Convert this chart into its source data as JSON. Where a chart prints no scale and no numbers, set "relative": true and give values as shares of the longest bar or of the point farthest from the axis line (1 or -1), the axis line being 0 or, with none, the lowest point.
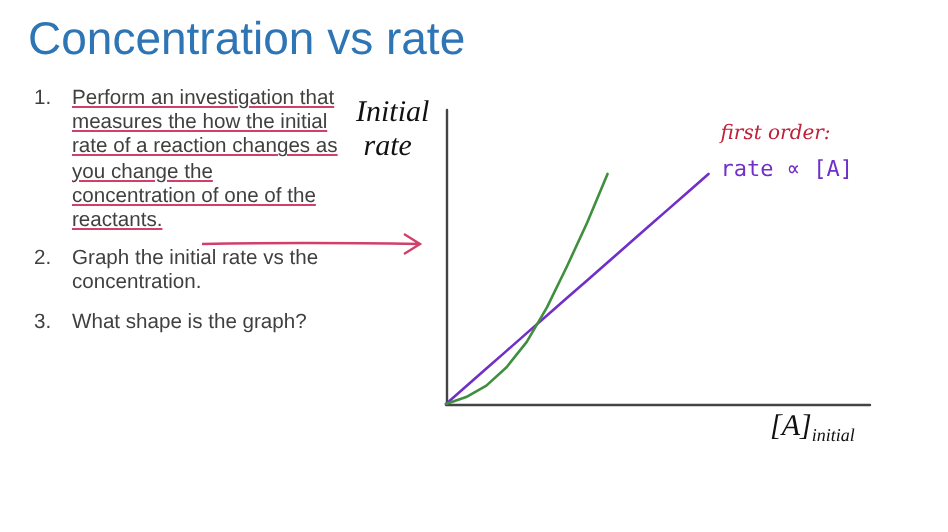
{
  "chart_data": {
    "type": "line",
    "title": "Concentration vs rate",
    "xlabel": "[A]$_{initial}$",
    "ylabel": "Initial rate",
    "relative": true,
    "grid": false,
    "legend": false,
    "marker": "none",
    "line_style": "solid",
    "categories": [
      null,
      null,
      null,
      null,
      null,
      null,
      null,
      null,
      null,
      null,
      null,
      null,
      null,
      null,
      null,
      null,
      null,
      null,
      null,
      null,
      null,
      null
    ],
    "series": [
      {
        "name": "rate ∝ [A]",
        "color": "#7030c8",
        "values": [
          0,
          0.077,
          0.154,
          0.231,
          0.308,
          0.385,
          0.462,
          0.538,
          0.615,
          0.692,
          0.769,
          0.846,
          0.923,
          1,
          null,
          null,
          null,
          null,
          null,
          null,
          null,
          null
        ]
      },
      {
        "color": "#3f8f3f",
        "values": [
          0,
          0.03,
          0.08,
          0.16,
          0.27,
          0.42,
          0.6,
          0.79,
          1,
          null,
          null,
          null,
          null,
          null,
          null,
          null,
          null,
          null,
          null,
          null,
          null,
          null
        ]
      }
    ],
    "annotations": [
      "1. Perform an investigation that measures the how the initial rate of a reaction changes as you change the concentration of one of the reactants.",
      "2. Graph the initial rate vs the concentration.",
      "3. What shape is the graph?",
      "first order:"
    ]
  }
}
